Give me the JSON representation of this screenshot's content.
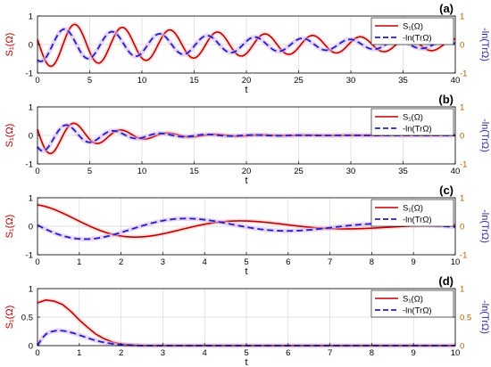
{
  "colors": {
    "s1": "#c00000",
    "s1_fill": "#f4c2c2",
    "ln": "#1f1fd0",
    "ln_fill": "#d9b3e6",
    "left_axis": "#c00000",
    "right_axis": "#2a2aa8",
    "right_ticks": "#b85c00",
    "grid": "#d9d9d9"
  },
  "chart_data": [
    {
      "type": "line",
      "panel_label": "(a)",
      "xlabel": "t",
      "ylabel_left": "S₁(Ω)",
      "ylabel_right": "-ln(TrΩ)",
      "xlim": [
        0,
        40
      ],
      "xticks": [
        0,
        5,
        10,
        15,
        20,
        25,
        30,
        35,
        40
      ],
      "ylim": [
        -1,
        1
      ],
      "yticks": [
        -1,
        0,
        1
      ],
      "ylim_right": [
        -1,
        1
      ],
      "yticks_right": [
        -1,
        0,
        1
      ],
      "grid": true,
      "legend": "top-right",
      "series": [
        {
          "name": "S₁(Ω)",
          "style": "solid",
          "model": "damped_cos",
          "params": {
            "a": 0.8,
            "k": 0.035,
            "w": 1.379,
            "p": 1.35,
            "d": 0,
            "c": 0
          }
        },
        {
          "name": "-ln(TrΩ)",
          "style": "dashed",
          "model": "damped_cos",
          "params": {
            "a": 0.6,
            "k": 0.04,
            "w": 1.379,
            "p": 2.7,
            "d": 0,
            "c": 0
          }
        }
      ]
    },
    {
      "type": "line",
      "panel_label": "(b)",
      "xlabel": "t",
      "ylabel_left": "S₁(Ω)",
      "ylabel_right": "-ln(TrΩ)",
      "xlim": [
        0,
        40
      ],
      "xticks": [
        0,
        5,
        10,
        15,
        20,
        25,
        30,
        35,
        40
      ],
      "ylim": [
        -1,
        1
      ],
      "yticks": [
        -1,
        0,
        1
      ],
      "ylim_right": [
        -1,
        1
      ],
      "yticks_right": [
        -1,
        0,
        1
      ],
      "grid": true,
      "legend": "top-right",
      "series": [
        {
          "name": "S₁(Ω)",
          "style": "solid",
          "model": "damped_cos",
          "params": {
            "a": 0.8,
            "k": 0.18,
            "w": 1.4,
            "p": 1.3,
            "d": 0,
            "c": 0
          }
        },
        {
          "name": "-ln(TrΩ)",
          "style": "dashed",
          "model": "damped_cos",
          "params": {
            "a": 0.6,
            "k": 0.18,
            "w": 1.4,
            "p": 2.3,
            "d": 0,
            "c": 0
          }
        }
      ]
    },
    {
      "type": "line",
      "panel_label": "(c)",
      "xlabel": "t",
      "ylabel_left": "S₁(Ω)",
      "ylabel_right": "-ln(TrΩ)",
      "xlim": [
        0,
        10
      ],
      "xticks": [
        0,
        1,
        2,
        3,
        4,
        5,
        6,
        7,
        8,
        9,
        10
      ],
      "ylim": [
        -1,
        1
      ],
      "yticks": [
        -1,
        0,
        1
      ],
      "ylim_right": [
        -1,
        1
      ],
      "yticks_right": [
        -1,
        0,
        1
      ],
      "grid": true,
      "legend": "top-right",
      "series": [
        {
          "name": "S₁(Ω)",
          "style": "solid",
          "model": "damped_cos",
          "params": {
            "a": 0.75,
            "k": 0.28,
            "w": 1.25,
            "p": 0,
            "d": 0,
            "c": 0
          }
        },
        {
          "name": "-ln(TrΩ)",
          "style": "dashed",
          "model": "damped_cos",
          "params": {
            "a": 0.58,
            "k": 0.21,
            "w": 1.3,
            "p": 1.5,
            "d": 0,
            "c": 0
          }
        }
      ]
    },
    {
      "type": "line",
      "panel_label": "(d)",
      "xlabel": "t",
      "ylabel_left": "S₁(Ω)",
      "ylabel_right": "-ln(TrΩ)",
      "xlim": [
        0,
        10
      ],
      "xticks": [
        0,
        1,
        2,
        3,
        4,
        5,
        6,
        7,
        8,
        9,
        10
      ],
      "ylim": [
        0,
        1
      ],
      "yticks": [
        0,
        0.5,
        1
      ],
      "ylim_right": [
        0,
        1
      ],
      "yticks_right": [
        0,
        0.5,
        1
      ],
      "grid": true,
      "legend": "top-right",
      "series": [
        {
          "name": "S₁(Ω)",
          "style": "solid",
          "model": "points",
          "points": [
            [
              0,
              0.75
            ],
            [
              0.2,
              0.8
            ],
            [
              0.4,
              0.78
            ],
            [
              0.6,
              0.72
            ],
            [
              0.8,
              0.6
            ],
            [
              1.0,
              0.45
            ],
            [
              1.2,
              0.32
            ],
            [
              1.4,
              0.2
            ],
            [
              1.6,
              0.12
            ],
            [
              1.8,
              0.06
            ],
            [
              2.0,
              0.03
            ],
            [
              2.3,
              0.01
            ],
            [
              2.6,
              0.0
            ],
            [
              10,
              0.0
            ]
          ]
        },
        {
          "name": "-ln(TrΩ)",
          "style": "dashed",
          "model": "points",
          "points": [
            [
              0,
              0.0
            ],
            [
              0.1,
              0.12
            ],
            [
              0.2,
              0.2
            ],
            [
              0.3,
              0.24
            ],
            [
              0.5,
              0.27
            ],
            [
              0.7,
              0.25
            ],
            [
              0.9,
              0.21
            ],
            [
              1.1,
              0.16
            ],
            [
              1.3,
              0.11
            ],
            [
              1.5,
              0.07
            ],
            [
              1.8,
              0.03
            ],
            [
              2.1,
              0.01
            ],
            [
              2.5,
              0.0
            ],
            [
              10,
              0.0
            ]
          ]
        }
      ]
    }
  ]
}
